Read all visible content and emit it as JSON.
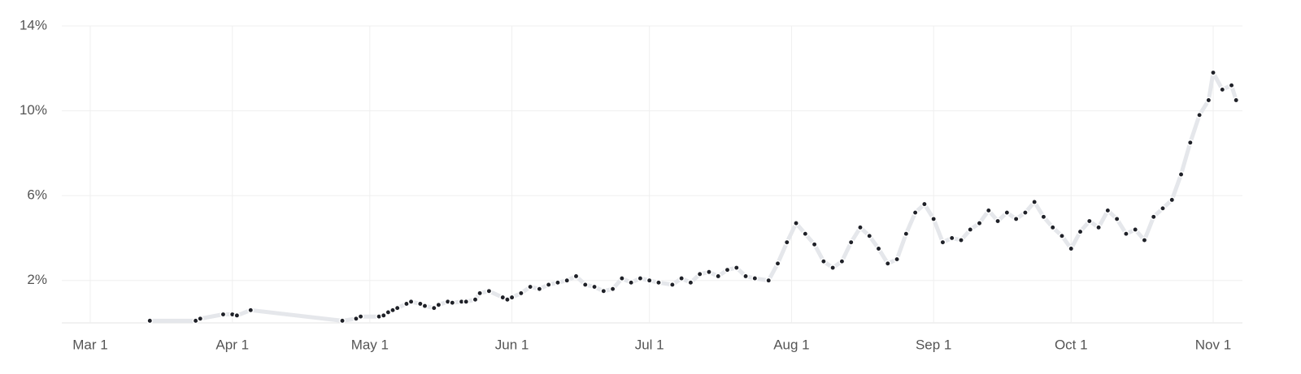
{
  "chart_data": {
    "type": "line",
    "x": [
      "Mar 14",
      "Mar 24",
      "Mar 25",
      "Mar 30",
      "Apr 1",
      "Apr 2",
      "Apr 5",
      "Apr 25",
      "Apr 28",
      "Apr 29",
      "May 3",
      "May 4",
      "May 5",
      "May 6",
      "May 7",
      "May 9",
      "May 10",
      "May 12",
      "May 13",
      "May 15",
      "May 16",
      "May 18",
      "May 19",
      "May 21",
      "May 22",
      "May 24",
      "May 25",
      "May 27",
      "May 30",
      "May 31",
      "Jun 1",
      "Jun 3",
      "Jun 5",
      "Jun 7",
      "Jun 9",
      "Jun 11",
      "Jun 13",
      "Jun 15",
      "Jun 17",
      "Jun 19",
      "Jun 21",
      "Jun 23",
      "Jun 25",
      "Jun 27",
      "Jun 29",
      "Jul 1",
      "Jul 3",
      "Jul 6",
      "Jul 8",
      "Jul 10",
      "Jul 12",
      "Jul 14",
      "Jul 16",
      "Jul 18",
      "Jul 20",
      "Jul 22",
      "Jul 24",
      "Jul 27",
      "Jul 29",
      "Jul 31",
      "Aug 2",
      "Aug 4",
      "Aug 6",
      "Aug 8",
      "Aug 10",
      "Aug 12",
      "Aug 14",
      "Aug 16",
      "Aug 18",
      "Aug 20",
      "Aug 22",
      "Aug 24",
      "Aug 26",
      "Aug 28",
      "Aug 30",
      "Sep 1",
      "Sep 3",
      "Sep 5",
      "Sep 7",
      "Sep 9",
      "Sep 11",
      "Sep 13",
      "Sep 15",
      "Sep 17",
      "Sep 19",
      "Sep 21",
      "Sep 23",
      "Sep 25",
      "Sep 27",
      "Sep 29",
      "Oct 1",
      "Oct 3",
      "Oct 5",
      "Oct 7",
      "Oct 9",
      "Oct 11",
      "Oct 13",
      "Oct 15",
      "Oct 17",
      "Oct 19",
      "Oct 21",
      "Oct 23",
      "Oct 25",
      "Oct 27",
      "Oct 29",
      "Oct 31",
      "Nov 1",
      "Nov 3",
      "Nov 5",
      "Nov 6"
    ],
    "values": [
      0.1,
      0.1,
      0.2,
      0.4,
      0.4,
      0.35,
      0.6,
      0.1,
      0.2,
      0.3,
      0.3,
      0.35,
      0.5,
      0.6,
      0.7,
      0.9,
      1.0,
      0.9,
      0.8,
      0.7,
      0.85,
      1.0,
      0.95,
      1.0,
      1.0,
      1.1,
      1.4,
      1.5,
      1.2,
      1.1,
      1.2,
      1.4,
      1.7,
      1.6,
      1.8,
      1.9,
      2.0,
      2.2,
      1.8,
      1.7,
      1.5,
      1.6,
      2.1,
      1.9,
      2.1,
      2.0,
      1.9,
      1.8,
      2.1,
      1.9,
      2.3,
      2.4,
      2.2,
      2.5,
      2.6,
      2.2,
      2.1,
      2.0,
      2.8,
      3.8,
      4.7,
      4.2,
      3.7,
      2.9,
      2.6,
      2.9,
      3.8,
      4.5,
      4.1,
      3.5,
      2.8,
      3.0,
      4.2,
      5.2,
      5.6,
      4.9,
      3.8,
      4.0,
      3.9,
      4.4,
      4.7,
      5.3,
      4.8,
      5.2,
      4.9,
      5.2,
      5.7,
      5.0,
      4.5,
      4.1,
      3.5,
      4.3,
      4.8,
      4.5,
      5.3,
      4.9,
      4.2,
      4.4,
      3.9,
      5.0,
      5.4,
      5.8,
      7.0,
      8.5,
      9.8,
      10.5,
      11.8,
      11.0,
      11.2,
      10.5
    ],
    "color": "#1f2128",
    "line_color": "#e5e7eb",
    "xticks": [
      "Mar 1",
      "Apr 1",
      "May 1",
      "Jun 1",
      "Jul 1",
      "Aug 1",
      "Sep 1",
      "Oct 1",
      "Nov 1"
    ],
    "ylim": [
      0,
      14
    ],
    "yticks": [
      {
        "value": 2,
        "label": "2%"
      },
      {
        "value": 6,
        "label": "6%"
      },
      {
        "value": 10,
        "label": "10%"
      },
      {
        "value": 14,
        "label": "14%"
      }
    ],
    "grid": true
  }
}
